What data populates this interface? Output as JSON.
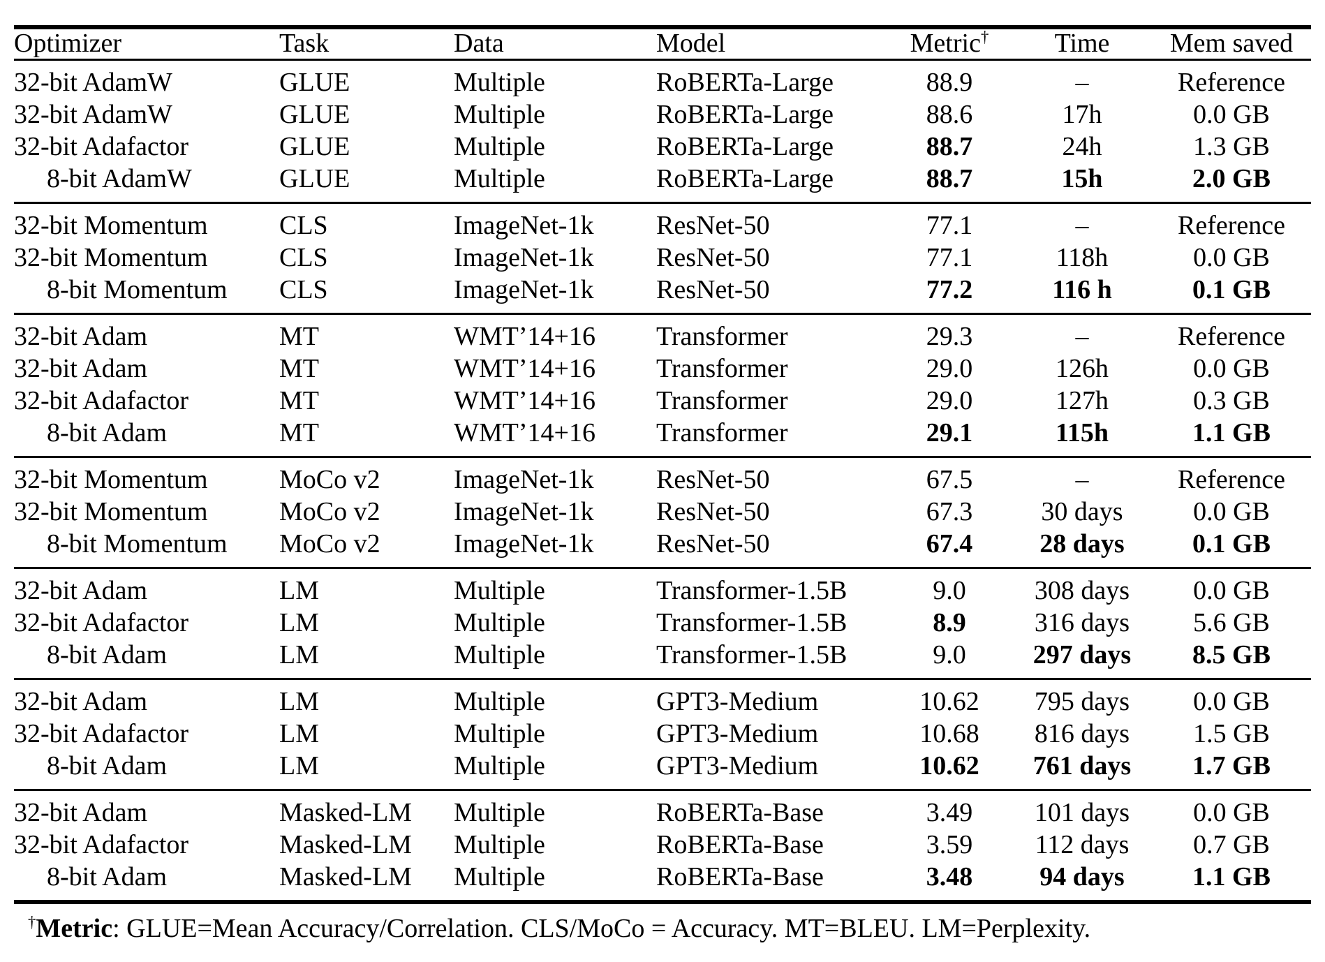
{
  "header": {
    "columns": [
      "Optimizer",
      "Task",
      "Data",
      "Model",
      "Metric",
      "Time",
      "Mem saved"
    ],
    "metric_sup": "†"
  },
  "table": {
    "groups": [
      {
        "rows": [
          {
            "optimizer": "32-bit AdamW",
            "indent": false,
            "task": "GLUE",
            "data": "Multiple",
            "model": "RoBERTa-Large",
            "metric": "88.9",
            "metric_bold": false,
            "time": "–",
            "time_bold": false,
            "mem": "Reference",
            "mem_bold": false
          },
          {
            "optimizer": "32-bit AdamW",
            "indent": false,
            "task": "GLUE",
            "data": "Multiple",
            "model": "RoBERTa-Large",
            "metric": "88.6",
            "metric_bold": false,
            "time": "17h",
            "time_bold": false,
            "mem": "0.0 GB",
            "mem_bold": false
          },
          {
            "optimizer": "32-bit Adafactor",
            "indent": false,
            "task": "GLUE",
            "data": "Multiple",
            "model": "RoBERTa-Large",
            "metric": "88.7",
            "metric_bold": true,
            "time": "24h",
            "time_bold": false,
            "mem": "1.3 GB",
            "mem_bold": false
          },
          {
            "optimizer": "8-bit AdamW",
            "indent": true,
            "task": "GLUE",
            "data": "Multiple",
            "model": "RoBERTa-Large",
            "metric": "88.7",
            "metric_bold": true,
            "time": "15h",
            "time_bold": true,
            "mem": "2.0 GB",
            "mem_bold": true
          }
        ]
      },
      {
        "rows": [
          {
            "optimizer": "32-bit Momentum",
            "indent": false,
            "task": "CLS",
            "data": "ImageNet-1k",
            "model": "ResNet-50",
            "metric": "77.1",
            "metric_bold": false,
            "time": "–",
            "time_bold": false,
            "mem": "Reference",
            "mem_bold": false
          },
          {
            "optimizer": "32-bit Momentum",
            "indent": false,
            "task": "CLS",
            "data": "ImageNet-1k",
            "model": "ResNet-50",
            "metric": "77.1",
            "metric_bold": false,
            "time": "118h",
            "time_bold": false,
            "mem": "0.0 GB",
            "mem_bold": false
          },
          {
            "optimizer": "8-bit Momentum",
            "indent": true,
            "task": "CLS",
            "data": "ImageNet-1k",
            "model": "ResNet-50",
            "metric": "77.2",
            "metric_bold": true,
            "time": "116 h",
            "time_bold": true,
            "mem": "0.1 GB",
            "mem_bold": true
          }
        ]
      },
      {
        "rows": [
          {
            "optimizer": "32-bit Adam",
            "indent": false,
            "task": "MT",
            "data": "WMT’14+16",
            "model": "Transformer",
            "metric": "29.3",
            "metric_bold": false,
            "time": "–",
            "time_bold": false,
            "mem": "Reference",
            "mem_bold": false
          },
          {
            "optimizer": "32-bit Adam",
            "indent": false,
            "task": "MT",
            "data": "WMT’14+16",
            "model": "Transformer",
            "metric": "29.0",
            "metric_bold": false,
            "time": "126h",
            "time_bold": false,
            "mem": "0.0 GB",
            "mem_bold": false
          },
          {
            "optimizer": "32-bit Adafactor",
            "indent": false,
            "task": "MT",
            "data": "WMT’14+16",
            "model": "Transformer",
            "metric": "29.0",
            "metric_bold": false,
            "time": "127h",
            "time_bold": false,
            "mem": "0.3 GB",
            "mem_bold": false
          },
          {
            "optimizer": "8-bit Adam",
            "indent": true,
            "task": "MT",
            "data": "WMT’14+16",
            "model": "Transformer",
            "metric": "29.1",
            "metric_bold": true,
            "time": "115h",
            "time_bold": true,
            "mem": "1.1 GB",
            "mem_bold": true
          }
        ]
      },
      {
        "rows": [
          {
            "optimizer": "32-bit Momentum",
            "indent": false,
            "task": "MoCo v2",
            "data": "ImageNet-1k",
            "model": "ResNet-50",
            "metric": "67.5",
            "metric_bold": false,
            "time": "–",
            "time_bold": false,
            "mem": "Reference",
            "mem_bold": false
          },
          {
            "optimizer": "32-bit Momentum",
            "indent": false,
            "task": "MoCo v2",
            "data": "ImageNet-1k",
            "model": "ResNet-50",
            "metric": "67.3",
            "metric_bold": false,
            "time": "30 days",
            "time_bold": false,
            "mem": "0.0 GB",
            "mem_bold": false
          },
          {
            "optimizer": "8-bit Momentum",
            "indent": true,
            "task": "MoCo v2",
            "data": "ImageNet-1k",
            "model": "ResNet-50",
            "metric": "67.4",
            "metric_bold": true,
            "time": "28 days",
            "time_bold": true,
            "mem": "0.1 GB",
            "mem_bold": true
          }
        ]
      },
      {
        "rows": [
          {
            "optimizer": "32-bit Adam",
            "indent": false,
            "task": "LM",
            "data": "Multiple",
            "model": "Transformer-1.5B",
            "metric": "9.0",
            "metric_bold": false,
            "time": "308 days",
            "time_bold": false,
            "mem": "0.0 GB",
            "mem_bold": false
          },
          {
            "optimizer": "32-bit Adafactor",
            "indent": false,
            "task": "LM",
            "data": "Multiple",
            "model": "Transformer-1.5B",
            "metric": "8.9",
            "metric_bold": true,
            "time": "316 days",
            "time_bold": false,
            "mem": "5.6 GB",
            "mem_bold": false
          },
          {
            "optimizer": "8-bit Adam",
            "indent": true,
            "task": "LM",
            "data": "Multiple",
            "model": "Transformer-1.5B",
            "metric": "9.0",
            "metric_bold": false,
            "time": "297 days",
            "time_bold": true,
            "mem": "8.5 GB",
            "mem_bold": true
          }
        ]
      },
      {
        "rows": [
          {
            "optimizer": "32-bit Adam",
            "indent": false,
            "task": "LM",
            "data": "Multiple",
            "model": "GPT3-Medium",
            "metric": "10.62",
            "metric_bold": false,
            "time": "795 days",
            "time_bold": false,
            "mem": "0.0 GB",
            "mem_bold": false
          },
          {
            "optimizer": "32-bit Adafactor",
            "indent": false,
            "task": "LM",
            "data": "Multiple",
            "model": "GPT3-Medium",
            "metric": "10.68",
            "metric_bold": false,
            "time": "816 days",
            "time_bold": false,
            "mem": "1.5 GB",
            "mem_bold": false
          },
          {
            "optimizer": "8-bit Adam",
            "indent": true,
            "task": "LM",
            "data": "Multiple",
            "model": "GPT3-Medium",
            "metric": "10.62",
            "metric_bold": true,
            "time": "761 days",
            "time_bold": true,
            "mem": "1.7 GB",
            "mem_bold": true
          }
        ]
      },
      {
        "rows": [
          {
            "optimizer": "32-bit Adam",
            "indent": false,
            "task": "Masked-LM",
            "data": "Multiple",
            "model": "RoBERTa-Base",
            "metric": "3.49",
            "metric_bold": false,
            "time": "101 days",
            "time_bold": false,
            "mem": "0.0 GB",
            "mem_bold": false
          },
          {
            "optimizer": "32-bit Adafactor",
            "indent": false,
            "task": "Masked-LM",
            "data": "Multiple",
            "model": "RoBERTa-Base",
            "metric": "3.59",
            "metric_bold": false,
            "time": "112 days",
            "time_bold": false,
            "mem": "0.7 GB",
            "mem_bold": false
          },
          {
            "optimizer": "8-bit Adam",
            "indent": true,
            "task": "Masked-LM",
            "data": "Multiple",
            "model": "RoBERTa-Base",
            "metric": "3.48",
            "metric_bold": true,
            "time": "94 days",
            "time_bold": true,
            "mem": "1.1 GB",
            "mem_bold": true
          }
        ]
      }
    ]
  },
  "footnote": {
    "dagger": "†",
    "label": "Metric",
    "text": ": GLUE=Mean Accuracy/Correlation. CLS/MoCo = Accuracy. MT=BLEU. LM=Perplexity."
  },
  "colors": {
    "text": "#000000",
    "background": "#ffffff",
    "rule": "#000000"
  }
}
